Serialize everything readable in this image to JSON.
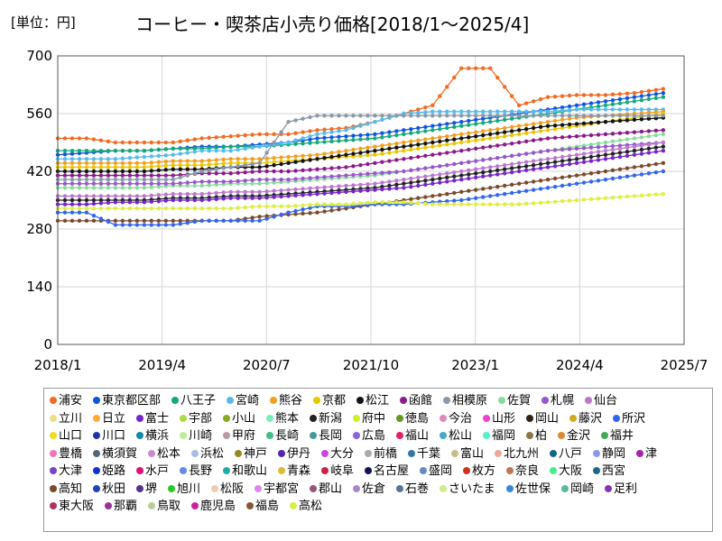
{
  "unit_label": "[単位：円]",
  "chart_data": {
    "type": "line",
    "title": "コーヒー・喫茶店小売り価格[2018/1～2025/4]",
    "xlabel": "",
    "ylabel": "",
    "ylim": [
      0,
      700
    ],
    "yticks": [
      0,
      140,
      280,
      420,
      560,
      700
    ],
    "xlim": [
      "2018-01",
      "2025-07"
    ],
    "xticks": [
      "2018/1",
      "2019/4",
      "2020/7",
      "2021/10",
      "2023/1",
      "2024/4",
      "2025/7"
    ],
    "grid": true,
    "legend_position": "bottom",
    "series": [
      {
        "name": "浦安",
        "color": "#f26b21",
        "values": [
          500,
          500,
          490,
          490,
          490,
          500,
          505,
          510,
          510,
          520,
          525,
          540,
          560,
          580,
          670,
          670,
          580,
          600,
          605,
          605,
          610,
          620
        ]
      },
      {
        "name": "東京都区部",
        "color": "#1155dd",
        "values": [
          460,
          465,
          470,
          470,
          475,
          480,
          480,
          485,
          490,
          500,
          505,
          510,
          520,
          530,
          540,
          550,
          560,
          570,
          580,
          590,
          600,
          610
        ]
      },
      {
        "name": "八王子",
        "color": "#11aa77",
        "values": [
          470,
          470,
          470,
          470,
          475,
          475,
          480,
          480,
          485,
          490,
          495,
          500,
          510,
          520,
          530,
          540,
          550,
          560,
          570,
          580,
          590,
          600
        ]
      },
      {
        "name": "宮崎",
        "color": "#55bbee",
        "values": [
          450,
          450,
          450,
          455,
          460,
          470,
          470,
          480,
          490,
          510,
          520,
          540,
          560,
          565,
          565,
          565,
          565,
          565,
          570,
          570,
          570,
          570
        ]
      },
      {
        "name": "熊谷",
        "color": "#f0a020",
        "values": [
          440,
          440,
          440,
          440,
          445,
          445,
          450,
          450,
          455,
          460,
          470,
          480,
          490,
          500,
          510,
          520,
          530,
          540,
          550,
          555,
          560,
          565
        ]
      },
      {
        "name": "京都",
        "color": "#e8c600",
        "values": [
          430,
          430,
          430,
          430,
          435,
          435,
          440,
          440,
          445,
          450,
          455,
          460,
          470,
          480,
          490,
          500,
          510,
          520,
          530,
          540,
          550,
          560
        ]
      },
      {
        "name": "松江",
        "color": "#111111",
        "values": [
          420,
          420,
          420,
          420,
          425,
          425,
          430,
          430,
          440,
          450,
          460,
          470,
          480,
          490,
          500,
          510,
          520,
          530,
          535,
          540,
          545,
          550
        ]
      },
      {
        "name": "函館",
        "color": "#8b1a8b",
        "values": [
          410,
          410,
          410,
          410,
          410,
          415,
          415,
          420,
          420,
          425,
          430,
          440,
          450,
          460,
          470,
          480,
          490,
          500,
          505,
          510,
          515,
          520
        ]
      },
      {
        "name": "相模原",
        "color": "#8899aa",
        "values": [
          400,
          400,
          400,
          400,
          400,
          420,
          430,
          440,
          540,
          555,
          555,
          555,
          555,
          555,
          555,
          555,
          555,
          555,
          555,
          555,
          555,
          555
        ]
      },
      {
        "name": "佐賀",
        "color": "#88dd99",
        "values": [
          380,
          380,
          380,
          380,
          385,
          385,
          390,
          390,
          395,
          400,
          405,
          410,
          420,
          430,
          440,
          450,
          460,
          470,
          480,
          490,
          500,
          510
        ]
      },
      {
        "name": "札幌",
        "color": "#9955cc",
        "values": [
          390,
          390,
          390,
          390,
          390,
          395,
          395,
          400,
          400,
          405,
          410,
          415,
          420,
          430,
          440,
          450,
          460,
          470,
          475,
          480,
          485,
          490
        ]
      },
      {
        "name": "仙台",
        "color": "#bb77cc",
        "values": [
          360,
          360,
          360,
          360,
          365,
          365,
          370,
          370,
          375,
          380,
          385,
          390,
          400,
          410,
          420,
          430,
          440,
          450,
          460,
          470,
          480,
          490
        ]
      },
      {
        "name": "新潟",
        "color": "#222222",
        "values": [
          350,
          350,
          350,
          350,
          355,
          355,
          360,
          360,
          365,
          370,
          375,
          380,
          390,
          400,
          410,
          420,
          430,
          440,
          450,
          460,
          470,
          480
        ]
      },
      {
        "name": "富士",
        "color": "#7722cc",
        "values": [
          340,
          340,
          345,
          345,
          350,
          350,
          355,
          355,
          360,
          365,
          370,
          375,
          380,
          390,
          400,
          410,
          420,
          430,
          440,
          450,
          460,
          470
        ]
      },
      {
        "name": "高知",
        "color": "#7a4a2a",
        "values": [
          300,
          300,
          300,
          300,
          300,
          300,
          300,
          310,
          315,
          320,
          330,
          340,
          350,
          360,
          370,
          380,
          390,
          400,
          410,
          420,
          430,
          440
        ]
      },
      {
        "name": "所沢",
        "color": "#3366ee",
        "values": [
          320,
          320,
          290,
          290,
          290,
          300,
          300,
          300,
          320,
          335,
          335,
          340,
          340,
          345,
          350,
          360,
          370,
          380,
          390,
          400,
          410,
          420
        ]
      },
      {
        "name": "高松",
        "color": "#ddee44",
        "values": [
          330,
          330,
          330,
          330,
          330,
          330,
          330,
          335,
          335,
          340,
          340,
          345,
          345,
          340,
          340,
          340,
          340,
          345,
          350,
          355,
          360,
          365
        ]
      }
    ]
  },
  "legend": [
    {
      "name": "浦安",
      "color": "#f26b21"
    },
    {
      "name": "東京都区部",
      "color": "#1155dd"
    },
    {
      "name": "八王子",
      "color": "#11aa77"
    },
    {
      "name": "宮崎",
      "color": "#55bbee"
    },
    {
      "name": "熊谷",
      "color": "#f0a020"
    },
    {
      "name": "京都",
      "color": "#e8c600"
    },
    {
      "name": "松江",
      "color": "#111111"
    },
    {
      "name": "函館",
      "color": "#8b1a8b"
    },
    {
      "name": "相模原",
      "color": "#8899aa"
    },
    {
      "name": "佐賀",
      "color": "#88dd99"
    },
    {
      "name": "札幌",
      "color": "#9955cc"
    },
    {
      "name": "仙台",
      "color": "#bb77cc"
    },
    {
      "name": "立川",
      "color": "#eedd88"
    },
    {
      "name": "日立",
      "color": "#ffaa33"
    },
    {
      "name": "富士",
      "color": "#7722cc"
    },
    {
      "name": "宇部",
      "color": "#aadd44"
    },
    {
      "name": "小山",
      "color": "#88aa22"
    },
    {
      "name": "熊本",
      "color": "#77eebb"
    },
    {
      "name": "新潟",
      "color": "#222222"
    },
    {
      "name": "府中",
      "color": "#ccee33"
    },
    {
      "name": "徳島",
      "color": "#669922"
    },
    {
      "name": "今治",
      "color": "#dd88bb"
    },
    {
      "name": "山形",
      "color": "#ee44cc"
    },
    {
      "name": "岡山",
      "color": "#332211"
    },
    {
      "name": "藤沢",
      "color": "#ccaa22"
    },
    {
      "name": "所沢",
      "color": "#3366ee"
    },
    {
      "name": "山口",
      "color": "#eedd22"
    },
    {
      "name": "川口",
      "color": "#2233aa"
    },
    {
      "name": "横浜",
      "color": "#1188aa"
    },
    {
      "name": "川崎",
      "color": "#bbee99"
    },
    {
      "name": "甲府",
      "color": "#bb99aa"
    },
    {
      "name": "長崎",
      "color": "#44bb88"
    },
    {
      "name": "長岡",
      "color": "#449999"
    },
    {
      "name": "広島",
      "color": "#8866dd"
    },
    {
      "name": "福山",
      "color": "#dd2266"
    },
    {
      "name": "松山",
      "color": "#44aacc"
    },
    {
      "name": "福岡",
      "color": "#55eecc"
    },
    {
      "name": "柏",
      "color": "#887744"
    },
    {
      "name": "金沢",
      "color": "#dd8833"
    },
    {
      "name": "福井",
      "color": "#44aa55"
    },
    {
      "name": "豊橋",
      "color": "#ee77bb"
    },
    {
      "name": "横須賀",
      "color": "#556677"
    },
    {
      "name": "松本",
      "color": "#cc88cc"
    },
    {
      "name": "浜松",
      "color": "#aabbdd"
    },
    {
      "name": "神戸",
      "color": "#998822"
    },
    {
      "name": "伊丹",
      "color": "#5522aa"
    },
    {
      "name": "大分",
      "color": "#cc44dd"
    },
    {
      "name": "前橋",
      "color": "#aaaaaa"
    },
    {
      "name": "千葉",
      "color": "#3377aa"
    },
    {
      "name": "富山",
      "color": "#ccbb88"
    },
    {
      "name": "北九州",
      "color": "#eeaa99"
    },
    {
      "name": "八戸",
      "color": "#116688"
    },
    {
      "name": "静岡",
      "color": "#8899ee"
    },
    {
      "name": "津",
      "color": "#aa22aa"
    },
    {
      "name": "大津",
      "color": "#7744cc"
    },
    {
      "name": "姫路",
      "color": "#1133cc"
    },
    {
      "name": "水戸",
      "color": "#dd1177"
    },
    {
      "name": "長野",
      "color": "#6688ee"
    },
    {
      "name": "和歌山",
      "color": "#22aaaa"
    },
    {
      "name": "青森",
      "color": "#ddbb33"
    },
    {
      "name": "岐阜",
      "color": "#cc2244"
    },
    {
      "name": "名古屋",
      "color": "#111155"
    },
    {
      "name": "盛岡",
      "color": "#6688cc"
    },
    {
      "name": "枚方",
      "color": "#cc3322"
    },
    {
      "name": "奈良",
      "color": "#bb7755"
    },
    {
      "name": "大阪",
      "color": "#44ee88"
    },
    {
      "name": "西宮",
      "color": "#226688"
    },
    {
      "name": "高知",
      "color": "#7a4a2a"
    },
    {
      "name": "秋田",
      "color": "#2244bb"
    },
    {
      "name": "堺",
      "color": "#553388"
    },
    {
      "name": "旭川",
      "color": "#22cc22"
    },
    {
      "name": "松阪",
      "color": "#eeccaa"
    },
    {
      "name": "宇都宮",
      "color": "#dd88ee"
    },
    {
      "name": "郡山",
      "color": "#995577"
    },
    {
      "name": "佐倉",
      "color": "#aa88cc"
    },
    {
      "name": "石巻",
      "color": "#557799"
    },
    {
      "name": "さいたま",
      "color": "#ccee88"
    },
    {
      "name": "佐世保",
      "color": "#3388dd"
    },
    {
      "name": "岡崎",
      "color": "#55bb99"
    },
    {
      "name": "足利",
      "color": "#8833bb"
    },
    {
      "name": "東大阪",
      "color": "#aa3366"
    },
    {
      "name": "那覇",
      "color": "#993399"
    },
    {
      "name": "鳥取",
      "color": "#bbcc99"
    },
    {
      "name": "鹿児島",
      "color": "#cc2299"
    },
    {
      "name": "福島",
      "color": "#885533"
    },
    {
      "name": "高松",
      "color": "#ddee44"
    }
  ]
}
